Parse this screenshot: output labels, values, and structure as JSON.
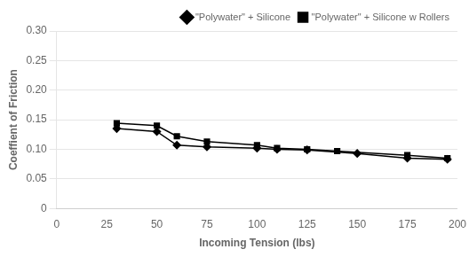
{
  "chart_data": {
    "type": "line",
    "xlabel": "Incoming Tension (lbs)",
    "ylabel": "Coeffient of Friction",
    "series": [
      {
        "name": "\"Polywater\" + Silicone",
        "color": "#000000",
        "marker": "diamond",
        "x": [
          30,
          50,
          60,
          75,
          100,
          110,
          125,
          150,
          175,
          195
        ],
        "values": [
          0.135,
          0.13,
          0.107,
          0.104,
          0.102,
          0.1,
          0.099,
          0.093,
          0.085,
          0.083
        ]
      },
      {
        "name": "\"Polywater\" + Silicone w Rollers",
        "color": "#000000",
        "marker": "square",
        "x": [
          30,
          50,
          60,
          75,
          100,
          110,
          125,
          140,
          175,
          195
        ],
        "values": [
          0.144,
          0.14,
          0.122,
          0.113,
          0.107,
          0.102,
          0.1,
          0.097,
          0.09,
          0.085
        ]
      }
    ],
    "xlim": [
      0,
      200
    ],
    "ylim": [
      0,
      0.3
    ],
    "xticks": [
      0,
      25,
      50,
      75,
      100,
      125,
      150,
      175,
      200
    ],
    "yticks": [
      0,
      0.05,
      {
        "value": 0.1,
        "label": "0.10"
      },
      0.15,
      {
        "value": 0.2,
        "label": "0.20"
      },
      0.25,
      {
        "value": 0.3,
        "label": "0.30"
      }
    ],
    "grid": "y",
    "legend": "upper right"
  }
}
